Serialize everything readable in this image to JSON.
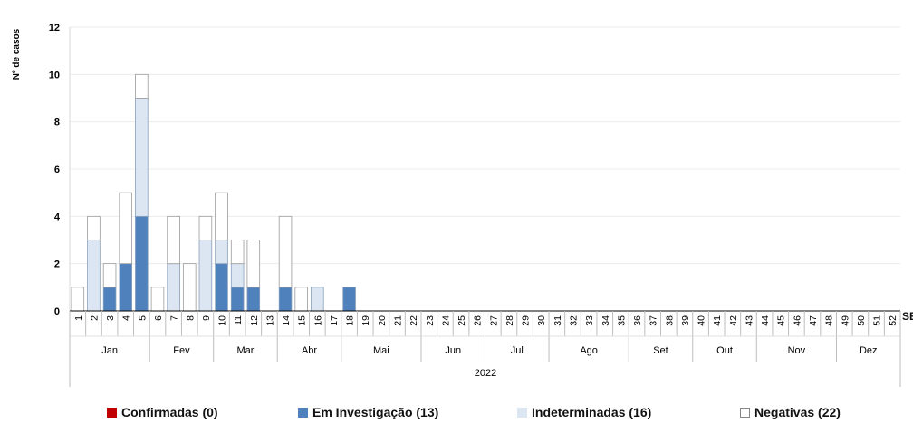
{
  "chart_data": {
    "type": "bar",
    "stacked": true,
    "ylabel": "Nº de casos",
    "xlabel": "SE",
    "year_label": "2022",
    "ylim": [
      0,
      12
    ],
    "yticks": [
      0,
      2,
      4,
      6,
      8,
      10,
      12
    ],
    "grid": true,
    "legend_position": "bottom",
    "weeks": [
      "1",
      "2",
      "3",
      "4",
      "5",
      "6",
      "7",
      "8",
      "9",
      "10",
      "11",
      "12",
      "13",
      "14",
      "15",
      "16",
      "17",
      "18",
      "19",
      "20",
      "21",
      "22",
      "23",
      "24",
      "25",
      "26",
      "27",
      "28",
      "29",
      "30",
      "31",
      "32",
      "33",
      "34",
      "35",
      "36",
      "37",
      "38",
      "39",
      "40",
      "41",
      "42",
      "43",
      "44",
      "45",
      "46",
      "47",
      "48",
      "49",
      "50",
      "51",
      "52"
    ],
    "months": [
      {
        "label": "Jan",
        "start_week": 1,
        "end_week": 5
      },
      {
        "label": "Fev",
        "start_week": 6,
        "end_week": 9
      },
      {
        "label": "Mar",
        "start_week": 10,
        "end_week": 13
      },
      {
        "label": "Abr",
        "start_week": 14,
        "end_week": 17
      },
      {
        "label": "Mai",
        "start_week": 18,
        "end_week": 22
      },
      {
        "label": "Jun",
        "start_week": 23,
        "end_week": 26
      },
      {
        "label": "Jul",
        "start_week": 27,
        "end_week": 30
      },
      {
        "label": "Ago",
        "start_week": 31,
        "end_week": 35
      },
      {
        "label": "Set",
        "start_week": 36,
        "end_week": 39
      },
      {
        "label": "Out",
        "start_week": 40,
        "end_week": 43
      },
      {
        "label": "Nov",
        "start_week": 44,
        "end_week": 48
      },
      {
        "label": "Dez",
        "start_week": 49,
        "end_week": 52
      }
    ],
    "series": [
      {
        "name": "Confirmadas (0)",
        "color": "#c00000",
        "values": [
          0,
          0,
          0,
          0,
          0,
          0,
          0,
          0,
          0,
          0,
          0,
          0,
          0,
          0,
          0,
          0,
          0,
          0,
          0,
          0,
          0,
          0,
          0,
          0,
          0,
          0,
          0,
          0,
          0,
          0,
          0,
          0,
          0,
          0,
          0,
          0,
          0,
          0,
          0,
          0,
          0,
          0,
          0,
          0,
          0,
          0,
          0,
          0,
          0,
          0,
          0,
          0
        ]
      },
      {
        "name": "Em Investigação (13)",
        "color": "#4f81bd",
        "values": [
          0,
          0,
          1,
          2,
          4,
          0,
          0,
          0,
          0,
          2,
          1,
          1,
          0,
          1,
          0,
          0,
          0,
          1,
          0,
          0,
          0,
          0,
          0,
          0,
          0,
          0,
          0,
          0,
          0,
          0,
          0,
          0,
          0,
          0,
          0,
          0,
          0,
          0,
          0,
          0,
          0,
          0,
          0,
          0,
          0,
          0,
          0,
          0,
          0,
          0,
          0,
          0
        ]
      },
      {
        "name": "Indeterminadas (16)",
        "color": "#dce6f2",
        "values": [
          0,
          3,
          0,
          0,
          5,
          0,
          2,
          0,
          3,
          1,
          1,
          0,
          0,
          0,
          0,
          1,
          0,
          0,
          0,
          0,
          0,
          0,
          0,
          0,
          0,
          0,
          0,
          0,
          0,
          0,
          0,
          0,
          0,
          0,
          0,
          0,
          0,
          0,
          0,
          0,
          0,
          0,
          0,
          0,
          0,
          0,
          0,
          0,
          0,
          0,
          0,
          0
        ]
      },
      {
        "name": "Negativas (22)",
        "color": "#ffffff",
        "values": [
          1,
          1,
          1,
          3,
          1,
          1,
          2,
          2,
          1,
          2,
          1,
          2,
          0,
          3,
          1,
          0,
          0,
          0,
          0,
          0,
          0,
          0,
          0,
          0,
          0,
          0,
          0,
          0,
          0,
          0,
          0,
          0,
          0,
          0,
          0,
          0,
          0,
          0,
          0,
          0,
          0,
          0,
          0,
          0,
          0,
          0,
          0,
          0,
          0,
          0,
          0,
          0
        ]
      }
    ]
  }
}
